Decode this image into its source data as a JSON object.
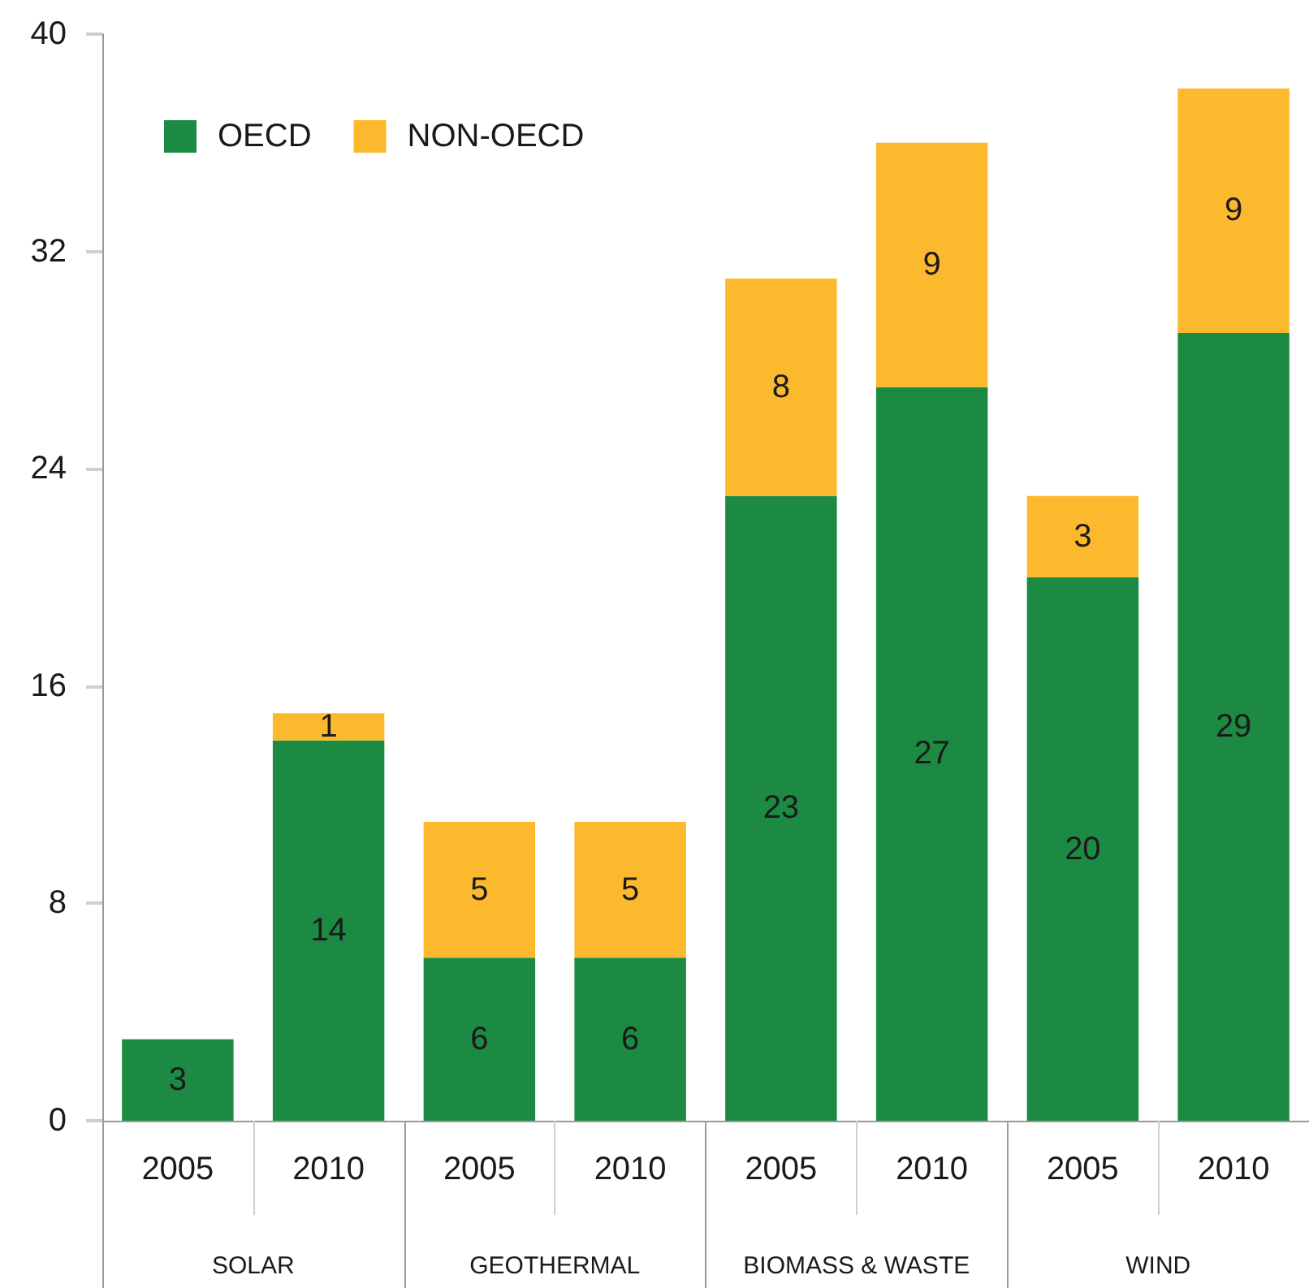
{
  "chart_data": {
    "type": "bar",
    "stacked": true,
    "categories": [
      "2005",
      "2010",
      "2005",
      "2010",
      "2005",
      "2010",
      "2005",
      "2010"
    ],
    "series": [
      {
        "name": "OECD",
        "color": "#1c8a43",
        "values": [
          3,
          14,
          6,
          6,
          23,
          27,
          20,
          29
        ]
      },
      {
        "name": "NON-OECD",
        "color": "#fdb92e",
        "values": [
          null,
          1,
          5,
          5,
          8,
          9,
          3,
          9
        ]
      }
    ],
    "ylim": [
      0,
      40
    ],
    "yticks": [
      0,
      8,
      16,
      24,
      32,
      40
    ],
    "data_labels": true,
    "grid": false,
    "legend": "top left",
    "annotations": [
      "SOLAR",
      "GEOTHERMAL",
      "BIOMASS & WASTE",
      "WIND"
    ]
  }
}
